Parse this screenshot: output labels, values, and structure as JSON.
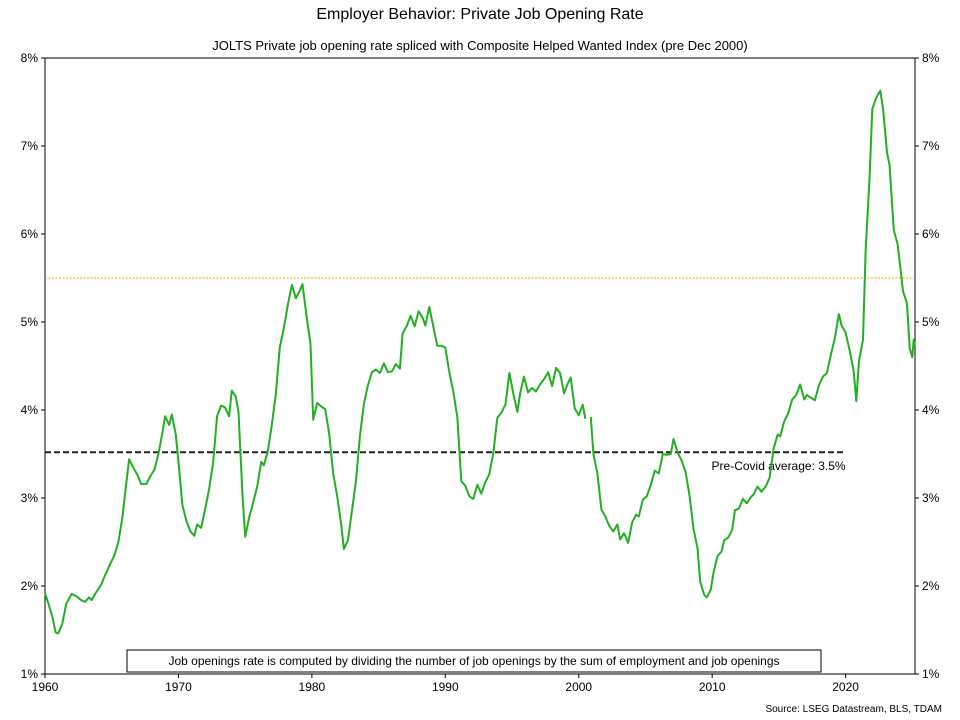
{
  "chart_data": {
    "type": "line",
    "title": "Employer Behavior: Private Job Opening Rate",
    "subtitle": "JOLTS Private job opening rate spliced with Composite Helped Wanted Index (pre Dec 2000)",
    "source": "Source: LSEG Datastream, BLS, TDAM",
    "xlim": [
      1960,
      2025.2
    ],
    "ylim": [
      1,
      8
    ],
    "x_ticks": [
      "1960",
      "1970",
      "1980",
      "1990",
      "2000",
      "2010",
      "2020"
    ],
    "y_ticks": [
      "1%",
      "2%",
      "3%",
      "4%",
      "5%",
      "6%",
      "7%",
      "8%"
    ],
    "grid": false,
    "y_axis_both_sides": true,
    "colors": {
      "series": "#22b022",
      "average_line": "#222222",
      "threshold_line": "#f0a000"
    },
    "reference_lines": [
      {
        "kind": "average",
        "value": 3.52,
        "x_start": 1960,
        "x_end": 2020,
        "label": "Pre-Covid average: 3.5%"
      },
      {
        "kind": "threshold",
        "value": 5.5
      }
    ],
    "note": "Job openings rate is computed by dividing the number of job openings by the sum of employment and job openings",
    "series": [
      {
        "segment": "pre-2000",
        "points": [
          [
            1960.0,
            1.92
          ],
          [
            1960.3,
            1.78
          ],
          [
            1960.6,
            1.62
          ],
          [
            1960.8,
            1.47
          ],
          [
            1961.0,
            1.46
          ],
          [
            1961.3,
            1.57
          ],
          [
            1961.6,
            1.8
          ],
          [
            1962.0,
            1.91
          ],
          [
            1962.4,
            1.88
          ],
          [
            1962.7,
            1.84
          ],
          [
            1963.0,
            1.82
          ],
          [
            1963.3,
            1.87
          ],
          [
            1963.5,
            1.84
          ],
          [
            1963.8,
            1.92
          ],
          [
            1964.2,
            2.01
          ],
          [
            1964.5,
            2.12
          ],
          [
            1964.8,
            2.22
          ],
          [
            1965.2,
            2.35
          ],
          [
            1965.5,
            2.5
          ],
          [
            1965.8,
            2.78
          ],
          [
            1966.0,
            3.05
          ],
          [
            1966.3,
            3.44
          ],
          [
            1966.6,
            3.35
          ],
          [
            1966.9,
            3.27
          ],
          [
            1967.2,
            3.16
          ],
          [
            1967.6,
            3.16
          ],
          [
            1967.9,
            3.25
          ],
          [
            1968.2,
            3.32
          ],
          [
            1968.5,
            3.5
          ],
          [
            1968.8,
            3.74
          ],
          [
            1969.0,
            3.93
          ],
          [
            1969.3,
            3.83
          ],
          [
            1969.5,
            3.95
          ],
          [
            1969.8,
            3.72
          ],
          [
            1970.0,
            3.42
          ],
          [
            1970.3,
            2.92
          ],
          [
            1970.6,
            2.74
          ],
          [
            1970.9,
            2.62
          ],
          [
            1971.2,
            2.57
          ],
          [
            1971.4,
            2.7
          ],
          [
            1971.7,
            2.66
          ],
          [
            1972.0,
            2.87
          ],
          [
            1972.3,
            3.1
          ],
          [
            1972.6,
            3.4
          ],
          [
            1972.9,
            3.93
          ],
          [
            1973.2,
            4.05
          ],
          [
            1973.5,
            4.03
          ],
          [
            1973.8,
            3.93
          ],
          [
            1974.0,
            4.22
          ],
          [
            1974.3,
            4.15
          ],
          [
            1974.5,
            3.98
          ],
          [
            1974.8,
            3.03
          ],
          [
            1975.0,
            2.56
          ],
          [
            1975.3,
            2.78
          ],
          [
            1975.6,
            2.95
          ],
          [
            1975.9,
            3.13
          ],
          [
            1976.2,
            3.41
          ],
          [
            1976.4,
            3.37
          ],
          [
            1976.7,
            3.53
          ],
          [
            1977.0,
            3.83
          ],
          [
            1977.3,
            4.18
          ],
          [
            1977.6,
            4.71
          ],
          [
            1977.9,
            4.93
          ],
          [
            1978.2,
            5.2
          ],
          [
            1978.5,
            5.42
          ],
          [
            1978.8,
            5.27
          ],
          [
            1979.1,
            5.36
          ],
          [
            1979.3,
            5.43
          ],
          [
            1979.6,
            5.07
          ],
          [
            1979.9,
            4.75
          ],
          [
            1980.1,
            3.89
          ],
          [
            1980.4,
            4.08
          ],
          [
            1980.7,
            4.04
          ],
          [
            1981.0,
            4.01
          ],
          [
            1981.3,
            3.73
          ],
          [
            1981.6,
            3.28
          ],
          [
            1981.9,
            3.02
          ],
          [
            1982.2,
            2.7
          ],
          [
            1982.4,
            2.42
          ],
          [
            1982.7,
            2.52
          ],
          [
            1983.0,
            2.85
          ],
          [
            1983.3,
            3.19
          ],
          [
            1983.6,
            3.7
          ],
          [
            1983.9,
            4.07
          ],
          [
            1984.2,
            4.28
          ],
          [
            1984.5,
            4.43
          ],
          [
            1984.8,
            4.46
          ],
          [
            1985.1,
            4.42
          ],
          [
            1985.4,
            4.53
          ],
          [
            1985.7,
            4.43
          ],
          [
            1986.0,
            4.44
          ],
          [
            1986.3,
            4.52
          ],
          [
            1986.6,
            4.47
          ],
          [
            1986.8,
            4.87
          ],
          [
            1987.1,
            4.95
          ],
          [
            1987.4,
            5.07
          ],
          [
            1987.7,
            4.95
          ],
          [
            1988.0,
            5.12
          ],
          [
            1988.3,
            5.05
          ],
          [
            1988.5,
            4.96
          ],
          [
            1988.8,
            5.17
          ],
          [
            1989.1,
            4.95
          ],
          [
            1989.4,
            4.73
          ],
          [
            1989.7,
            4.73
          ],
          [
            1990.0,
            4.71
          ],
          [
            1990.3,
            4.43
          ],
          [
            1990.6,
            4.21
          ],
          [
            1990.9,
            3.92
          ],
          [
            1991.2,
            3.19
          ],
          [
            1991.5,
            3.14
          ],
          [
            1991.8,
            3.02
          ],
          [
            1992.1,
            2.99
          ],
          [
            1992.4,
            3.15
          ],
          [
            1992.7,
            3.05
          ],
          [
            1993.0,
            3.18
          ],
          [
            1993.3,
            3.27
          ],
          [
            1993.6,
            3.51
          ],
          [
            1993.9,
            3.91
          ],
          [
            1994.2,
            3.97
          ],
          [
            1994.5,
            4.06
          ],
          [
            1994.8,
            4.42
          ],
          [
            1995.1,
            4.18
          ],
          [
            1995.4,
            3.98
          ],
          [
            1995.6,
            4.18
          ],
          [
            1995.9,
            4.38
          ],
          [
            1996.2,
            4.2
          ],
          [
            1996.5,
            4.25
          ],
          [
            1996.8,
            4.21
          ],
          [
            1997.1,
            4.29
          ],
          [
            1997.4,
            4.35
          ],
          [
            1997.7,
            4.43
          ],
          [
            1998.0,
            4.27
          ],
          [
            1998.3,
            4.48
          ],
          [
            1998.6,
            4.42
          ],
          [
            1998.9,
            4.19
          ],
          [
            1999.2,
            4.31
          ],
          [
            1999.4,
            4.37
          ],
          [
            1999.7,
            4.02
          ],
          [
            2000.0,
            3.94
          ],
          [
            2000.3,
            4.06
          ],
          [
            2000.5,
            3.9
          ]
        ]
      },
      {
        "segment": "jolts",
        "points": [
          [
            2000.9,
            3.92
          ],
          [
            2001.1,
            3.5
          ],
          [
            2001.4,
            3.28
          ],
          [
            2001.7,
            2.87
          ],
          [
            2002.0,
            2.79
          ],
          [
            2002.3,
            2.68
          ],
          [
            2002.6,
            2.62
          ],
          [
            2002.9,
            2.7
          ],
          [
            2003.1,
            2.53
          ],
          [
            2003.4,
            2.6
          ],
          [
            2003.7,
            2.49
          ],
          [
            2004.0,
            2.72
          ],
          [
            2004.3,
            2.81
          ],
          [
            2004.5,
            2.79
          ],
          [
            2004.8,
            2.98
          ],
          [
            2005.1,
            3.02
          ],
          [
            2005.4,
            3.15
          ],
          [
            2005.7,
            3.31
          ],
          [
            2006.0,
            3.28
          ],
          [
            2006.3,
            3.5
          ],
          [
            2006.6,
            3.49
          ],
          [
            2006.9,
            3.5
          ],
          [
            2007.1,
            3.67
          ],
          [
            2007.4,
            3.52
          ],
          [
            2007.7,
            3.43
          ],
          [
            2008.0,
            3.3
          ],
          [
            2008.3,
            3.03
          ],
          [
            2008.6,
            2.65
          ],
          [
            2008.9,
            2.43
          ],
          [
            2009.1,
            2.05
          ],
          [
            2009.4,
            1.9
          ],
          [
            2009.6,
            1.87
          ],
          [
            2009.9,
            1.96
          ],
          [
            2010.1,
            2.15
          ],
          [
            2010.4,
            2.34
          ],
          [
            2010.7,
            2.39
          ],
          [
            2010.9,
            2.52
          ],
          [
            2011.2,
            2.55
          ],
          [
            2011.5,
            2.64
          ],
          [
            2011.7,
            2.86
          ],
          [
            2012.0,
            2.88
          ],
          [
            2012.3,
            2.99
          ],
          [
            2012.6,
            2.94
          ],
          [
            2012.9,
            3.01
          ],
          [
            2013.1,
            3.04
          ],
          [
            2013.4,
            3.13
          ],
          [
            2013.7,
            3.07
          ],
          [
            2014.0,
            3.13
          ],
          [
            2014.3,
            3.23
          ],
          [
            2014.6,
            3.56
          ],
          [
            2014.9,
            3.72
          ],
          [
            2015.1,
            3.7
          ],
          [
            2015.4,
            3.87
          ],
          [
            2015.7,
            3.96
          ],
          [
            2016.0,
            4.12
          ],
          [
            2016.3,
            4.17
          ],
          [
            2016.6,
            4.29
          ],
          [
            2016.9,
            4.12
          ],
          [
            2017.1,
            4.17
          ],
          [
            2017.4,
            4.14
          ],
          [
            2017.7,
            4.11
          ],
          [
            2018.0,
            4.28
          ],
          [
            2018.3,
            4.38
          ],
          [
            2018.6,
            4.42
          ],
          [
            2018.9,
            4.63
          ],
          [
            2019.2,
            4.82
          ],
          [
            2019.5,
            5.09
          ],
          [
            2019.7,
            4.96
          ],
          [
            2020.0,
            4.88
          ],
          [
            2020.3,
            4.68
          ],
          [
            2020.6,
            4.45
          ],
          [
            2020.8,
            4.1
          ],
          [
            2021.0,
            4.56
          ],
          [
            2021.3,
            4.8
          ],
          [
            2021.5,
            5.8
          ],
          [
            2021.8,
            6.65
          ],
          [
            2022.0,
            7.42
          ],
          [
            2022.3,
            7.55
          ],
          [
            2022.6,
            7.63
          ],
          [
            2022.8,
            7.43
          ],
          [
            2023.1,
            6.93
          ],
          [
            2023.3,
            6.78
          ],
          [
            2023.6,
            6.05
          ],
          [
            2023.9,
            5.88
          ],
          [
            2024.1,
            5.62
          ],
          [
            2024.3,
            5.35
          ],
          [
            2024.6,
            5.21
          ],
          [
            2024.8,
            4.7
          ],
          [
            2025.0,
            4.6
          ],
          [
            2025.1,
            4.8
          ],
          [
            2025.2,
            4.72
          ]
        ]
      }
    ]
  }
}
